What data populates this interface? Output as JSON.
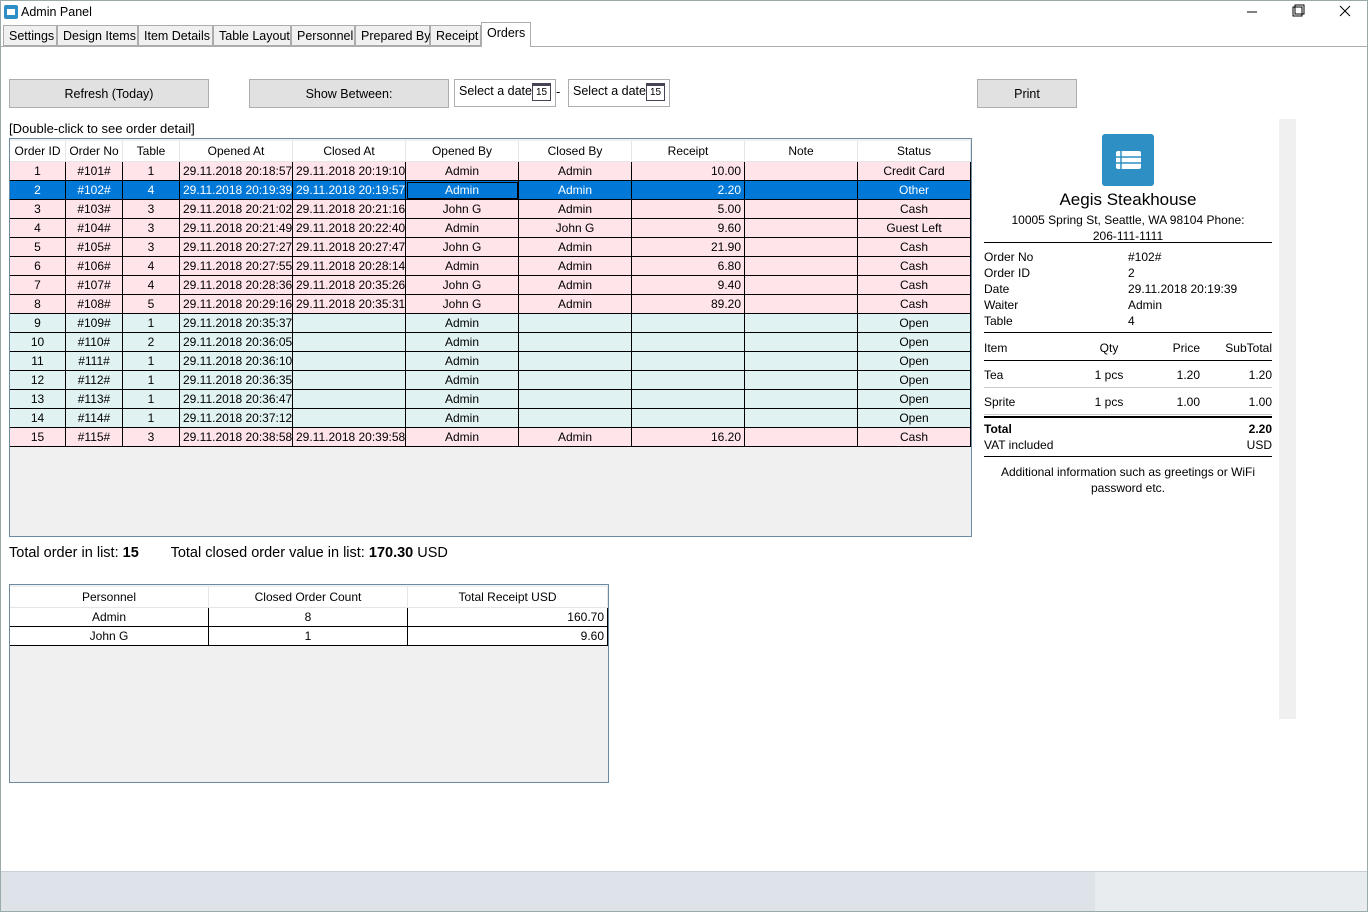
{
  "window": {
    "title": "Admin Panel"
  },
  "tabs": [
    "Settings",
    "Design Items",
    "Item Details",
    "Table Layout",
    "Personnel",
    "Prepared By",
    "Receipt",
    "Orders"
  ],
  "toolbar": {
    "refresh": "Refresh (Today)",
    "show_between": "Show Between:",
    "date_from": "Select a date",
    "date_separator": "-",
    "date_to": "Select a date",
    "calendar_day": "15",
    "print": "Print"
  },
  "orders": {
    "hint": "[Double-click to see order detail]",
    "columns": [
      "Order ID",
      "Order No",
      "Table",
      "Opened At",
      "Closed At",
      "Opened By",
      "Closed By",
      "Receipt",
      "Note",
      "Status"
    ],
    "rows": [
      [
        "1",
        "#101#",
        "1",
        "29.11.2018 20:18:57",
        "29.11.2018 20:19:10",
        "Admin",
        "Admin",
        "10.00",
        "",
        "Credit Card"
      ],
      [
        "2",
        "#102#",
        "4",
        "29.11.2018 20:19:39",
        "29.11.2018 20:19:57",
        "Admin",
        "Admin",
        "2.20",
        "",
        "Other"
      ],
      [
        "3",
        "#103#",
        "3",
        "29.11.2018 20:21:02",
        "29.11.2018 20:21:16",
        "John G",
        "Admin",
        "5.00",
        "",
        "Cash"
      ],
      [
        "4",
        "#104#",
        "3",
        "29.11.2018 20:21:49",
        "29.11.2018 20:22:40",
        "Admin",
        "John G",
        "9.60",
        "",
        "Guest Left"
      ],
      [
        "5",
        "#105#",
        "3",
        "29.11.2018 20:27:27",
        "29.11.2018 20:27:47",
        "John G",
        "Admin",
        "21.90",
        "",
        "Cash"
      ],
      [
        "6",
        "#106#",
        "4",
        "29.11.2018 20:27:55",
        "29.11.2018 20:28:14",
        "Admin",
        "Admin",
        "6.80",
        "",
        "Cash"
      ],
      [
        "7",
        "#107#",
        "4",
        "29.11.2018 20:28:36",
        "29.11.2018 20:35:26",
        "John G",
        "Admin",
        "9.40",
        "",
        "Cash"
      ],
      [
        "8",
        "#108#",
        "5",
        "29.11.2018 20:29:16",
        "29.11.2018 20:35:31",
        "John G",
        "Admin",
        "89.20",
        "",
        "Cash"
      ],
      [
        "9",
        "#109#",
        "1",
        "29.11.2018 20:35:37",
        "",
        "Admin",
        "",
        "",
        "",
        "Open"
      ],
      [
        "10",
        "#110#",
        "2",
        "29.11.2018 20:36:05",
        "",
        "Admin",
        "",
        "",
        "",
        "Open"
      ],
      [
        "11",
        "#111#",
        "1",
        "29.11.2018 20:36:10",
        "",
        "Admin",
        "",
        "",
        "",
        "Open"
      ],
      [
        "12",
        "#112#",
        "1",
        "29.11.2018 20:36:35",
        "",
        "Admin",
        "",
        "",
        "",
        "Open"
      ],
      [
        "13",
        "#113#",
        "1",
        "29.11.2018 20:36:47",
        "",
        "Admin",
        "",
        "",
        "",
        "Open"
      ],
      [
        "14",
        "#114#",
        "1",
        "29.11.2018 20:37:12",
        "",
        "Admin",
        "",
        "",
        "",
        "Open"
      ],
      [
        "15",
        "#115#",
        "3",
        "29.11.2018 20:38:58",
        "29.11.2018 20:39:58",
        "Admin",
        "Admin",
        "16.20",
        "",
        "Cash"
      ]
    ]
  },
  "summary": {
    "count_label": "Total order in list:",
    "count": "15",
    "value_label": "Total closed order value in list:",
    "value": "170.30",
    "currency": "USD"
  },
  "personnel": {
    "columns": [
      "Personnel",
      "Closed Order Count",
      "Total Receipt USD"
    ],
    "rows": [
      [
        "Admin",
        "8",
        "160.70"
      ],
      [
        "John G",
        "1",
        "9.60"
      ]
    ]
  },
  "receipt": {
    "restaurant": "Aegis Steakhouse",
    "address": "10005 Spring St, Seattle, WA 98104 Phone: 206-111-1111",
    "info": [
      [
        "Order No",
        "#102#"
      ],
      [
        "Order ID",
        "2"
      ],
      [
        "Date",
        "29.11.2018 20:19:39"
      ],
      [
        "Waiter",
        "Admin"
      ],
      [
        "Table",
        "4"
      ]
    ],
    "item_columns": [
      "Item",
      "Qty",
      "Price",
      "SubTotal"
    ],
    "items": [
      [
        "Tea",
        "1 pcs",
        "1.20",
        "1.20"
      ],
      [
        "Sprite",
        "1 pcs",
        "1.00",
        "1.00"
      ]
    ],
    "total_label": "Total",
    "total": "2.20",
    "vat_label": "VAT included",
    "currency": "USD",
    "footer": "Additional information such as greetings or WiFi password etc."
  }
}
